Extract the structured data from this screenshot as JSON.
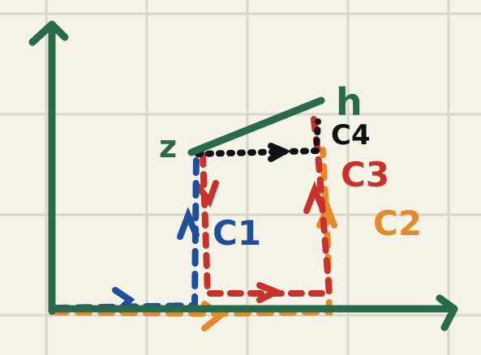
{
  "diagram": {
    "description_labels": {
      "start_point": "z",
      "end_point": "h",
      "path_1": "C1",
      "path_2": "C2",
      "path_3": "C3",
      "path_4": "C4"
    },
    "colors": {
      "background": "#f5f2e8",
      "grid": "#d9d6cc",
      "axes": "#2a6a4c",
      "segment": "#2a6a4c",
      "path_1": "#1f4e9c",
      "path_2": "#e58a2a",
      "path_3": "#c8322a",
      "path_4": "#111111"
    }
  }
}
